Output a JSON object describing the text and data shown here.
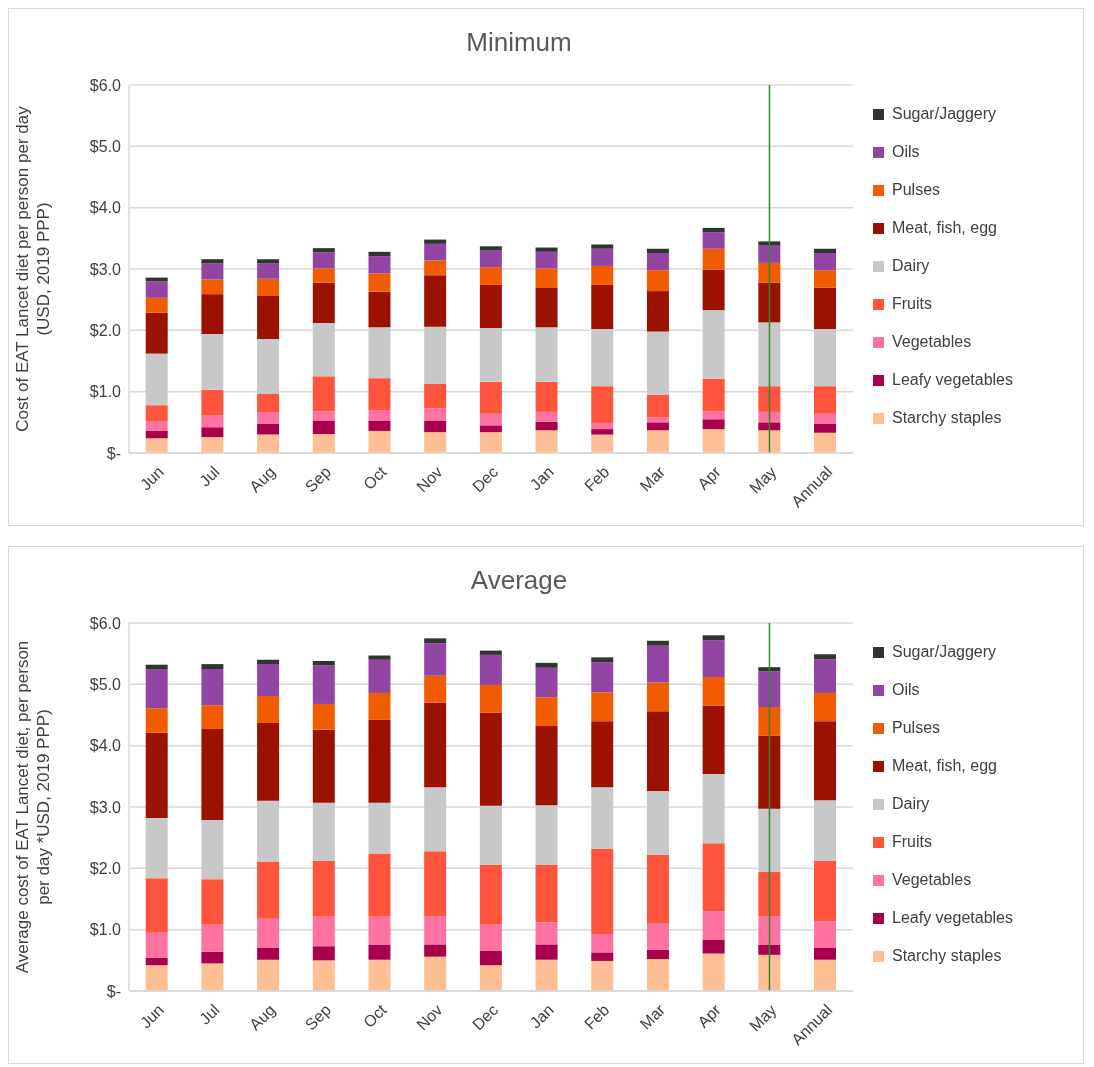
{
  "chart_data": [
    {
      "type": "bar",
      "title": "Minimum",
      "ylabel": "Cost of EAT Lancet diet per person per day (USD, 2019 PPP)",
      "stacked": true,
      "grid": "y",
      "legend": "right",
      "categories": [
        "Jun",
        "Jul",
        "Aug",
        "Sep",
        "Oct",
        "Nov",
        "Dec",
        "Jan",
        "Feb",
        "Mar",
        "Apr",
        "May",
        "Annual"
      ],
      "ylim": [
        0,
        6
      ],
      "yticks": [
        {
          "value": 0,
          "label": "$-"
        },
        {
          "value": 1,
          "label": "$1.0"
        },
        {
          "value": 2,
          "label": "$2.0"
        },
        {
          "value": 3,
          "label": "$3.0"
        },
        {
          "value": 4,
          "label": "$4.0"
        },
        {
          "value": 5,
          "label": "$5.0"
        },
        {
          "value": 6,
          "label": "$6.0"
        }
      ],
      "ref_lines": [
        {
          "axis": "x",
          "value": "May",
          "color": "#2e8b2e"
        }
      ],
      "series": [
        {
          "name": "Starchy staples",
          "color": "#ffbf94",
          "values": [
            0.24,
            0.26,
            0.3,
            0.31,
            0.36,
            0.34,
            0.34,
            0.37,
            0.3,
            0.37,
            0.39,
            0.37,
            0.33
          ]
        },
        {
          "name": "Leafy vegetables",
          "color": "#a8004c",
          "values": [
            0.12,
            0.16,
            0.18,
            0.22,
            0.17,
            0.19,
            0.11,
            0.14,
            0.09,
            0.13,
            0.16,
            0.13,
            0.15
          ]
        },
        {
          "name": "Vegetables",
          "color": "#ff73a3",
          "values": [
            0.15,
            0.19,
            0.19,
            0.15,
            0.17,
            0.2,
            0.19,
            0.16,
            0.1,
            0.08,
            0.13,
            0.17,
            0.16
          ]
        },
        {
          "name": "Fruits",
          "color": "#ff553d",
          "values": [
            0.27,
            0.42,
            0.29,
            0.57,
            0.52,
            0.4,
            0.52,
            0.49,
            0.6,
            0.37,
            0.53,
            0.42,
            0.45
          ]
        },
        {
          "name": "Dairy",
          "color": "#c8c8c8",
          "values": [
            0.84,
            0.91,
            0.9,
            0.87,
            0.83,
            0.93,
            0.88,
            0.89,
            0.93,
            1.03,
            1.12,
            1.04,
            0.93
          ]
        },
        {
          "name": "Meat, fish, egg",
          "color": "#9b1300",
          "values": [
            0.67,
            0.65,
            0.7,
            0.66,
            0.58,
            0.84,
            0.7,
            0.64,
            0.72,
            0.66,
            0.66,
            0.65,
            0.68
          ]
        },
        {
          "name": "Pulses",
          "color": "#f25c00",
          "values": [
            0.24,
            0.24,
            0.28,
            0.23,
            0.3,
            0.24,
            0.29,
            0.32,
            0.31,
            0.34,
            0.34,
            0.32,
            0.28
          ]
        },
        {
          "name": "Oils",
          "color": "#9345a3",
          "values": [
            0.27,
            0.26,
            0.25,
            0.26,
            0.28,
            0.27,
            0.27,
            0.27,
            0.28,
            0.28,
            0.27,
            0.28,
            0.28
          ]
        },
        {
          "name": "Sugar/Jaggery",
          "color": "#333333",
          "values": [
            0.06,
            0.07,
            0.07,
            0.07,
            0.07,
            0.07,
            0.07,
            0.07,
            0.07,
            0.07,
            0.07,
            0.07,
            0.07
          ]
        }
      ]
    },
    {
      "type": "bar",
      "title": "Average",
      "ylabel": "Average cost of EAT Lancet diet, per person per day *USD, 2019 PPP)",
      "stacked": true,
      "grid": "y",
      "legend": "right",
      "categories": [
        "Jun",
        "Jul",
        "Aug",
        "Sep",
        "Oct",
        "Nov",
        "Dec",
        "Jan",
        "Feb",
        "Mar",
        "Apr",
        "May",
        "Annual"
      ],
      "ylim": [
        0,
        6
      ],
      "yticks": [
        {
          "value": 0,
          "label": "$-"
        },
        {
          "value": 1,
          "label": "$1.0"
        },
        {
          "value": 2,
          "label": "$2.0"
        },
        {
          "value": 3,
          "label": "$3.0"
        },
        {
          "value": 4,
          "label": "$4.0"
        },
        {
          "value": 5,
          "label": "$5.0"
        },
        {
          "value": 6,
          "label": "$6.0"
        }
      ],
      "ref_lines": [
        {
          "axis": "x",
          "value": "May",
          "color": "#2e8b2e"
        }
      ],
      "series": [
        {
          "name": "Starchy staples",
          "color": "#ffbf94",
          "values": [
            0.42,
            0.45,
            0.51,
            0.5,
            0.51,
            0.56,
            0.42,
            0.51,
            0.49,
            0.52,
            0.61,
            0.59,
            0.51
          ]
        },
        {
          "name": "Leafy vegetables",
          "color": "#a8004c",
          "values": [
            0.12,
            0.19,
            0.2,
            0.23,
            0.24,
            0.2,
            0.24,
            0.25,
            0.14,
            0.15,
            0.23,
            0.16,
            0.2
          ]
        },
        {
          "name": "Vegetables",
          "color": "#ff73a3",
          "values": [
            0.41,
            0.44,
            0.47,
            0.48,
            0.46,
            0.46,
            0.42,
            0.36,
            0.3,
            0.44,
            0.46,
            0.47,
            0.43
          ]
        },
        {
          "name": "Fruits",
          "color": "#ff553d",
          "values": [
            0.89,
            0.74,
            0.93,
            0.91,
            1.03,
            1.06,
            0.98,
            0.94,
            1.39,
            1.11,
            1.11,
            0.72,
            0.98
          ]
        },
        {
          "name": "Dairy",
          "color": "#c8c8c8",
          "values": [
            0.98,
            0.97,
            0.99,
            0.95,
            0.83,
            1.04,
            0.96,
            0.97,
            1.0,
            1.04,
            1.13,
            1.03,
            0.99
          ]
        },
        {
          "name": "Meat, fish, egg",
          "color": "#9b1300",
          "values": [
            1.39,
            1.48,
            1.27,
            1.19,
            1.35,
            1.38,
            1.52,
            1.29,
            1.08,
            1.3,
            1.11,
            1.19,
            1.29
          ]
        },
        {
          "name": "Pulses",
          "color": "#f25c00",
          "values": [
            0.4,
            0.39,
            0.44,
            0.42,
            0.44,
            0.44,
            0.45,
            0.47,
            0.47,
            0.47,
            0.47,
            0.47,
            0.46
          ]
        },
        {
          "name": "Oils",
          "color": "#9345a3",
          "values": [
            0.63,
            0.59,
            0.52,
            0.63,
            0.54,
            0.53,
            0.49,
            0.48,
            0.49,
            0.6,
            0.6,
            0.58,
            0.55
          ]
        },
        {
          "name": "Sugar/Jaggery",
          "color": "#333333",
          "values": [
            0.08,
            0.08,
            0.07,
            0.07,
            0.07,
            0.08,
            0.07,
            0.08,
            0.08,
            0.08,
            0.08,
            0.07,
            0.08
          ]
        }
      ]
    }
  ]
}
